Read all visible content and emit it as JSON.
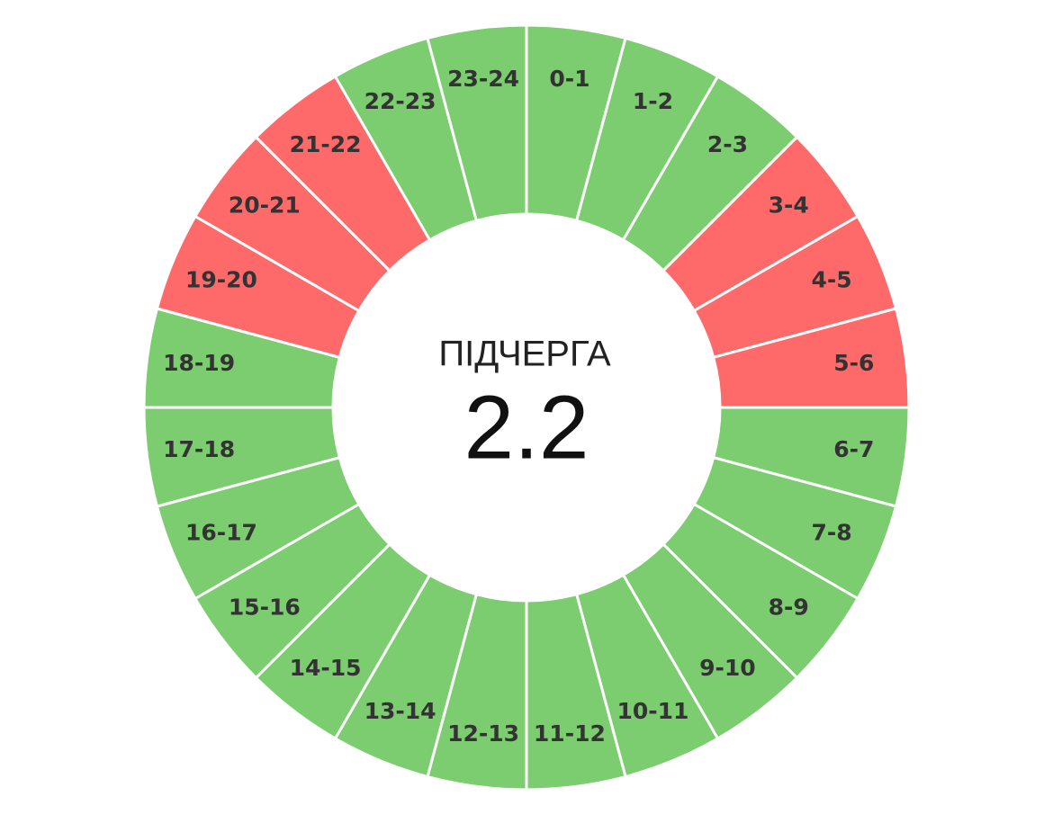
{
  "header": {
    "label": "ПІДЧЕРГА",
    "queue": "2.2"
  },
  "segments": [
    {
      "label": "0-1",
      "color": "#7ccd6f"
    },
    {
      "label": "1-2",
      "color": "#7ccd6f"
    },
    {
      "label": "2-3",
      "color": "#7ccd6f"
    },
    {
      "label": "3-4",
      "color": "#fe6a6a"
    },
    {
      "label": "4-5",
      "color": "#fe6a6a"
    },
    {
      "label": "5-6",
      "color": "#fe6a6a"
    },
    {
      "label": "6-7",
      "color": "#7ccd6f"
    },
    {
      "label": "7-8",
      "color": "#7ccd6f"
    },
    {
      "label": "8-9",
      "color": "#7ccd6f"
    },
    {
      "label": "9-10",
      "color": "#7ccd6f"
    },
    {
      "label": "10-11",
      "color": "#7ccd6f"
    },
    {
      "label": "11-12",
      "color": "#7ccd6f"
    },
    {
      "label": "12-13",
      "color": "#7ccd6f"
    },
    {
      "label": "13-14",
      "color": "#7ccd6f"
    },
    {
      "label": "14-15",
      "color": "#7ccd6f"
    },
    {
      "label": "15-16",
      "color": "#7ccd6f"
    },
    {
      "label": "16-17",
      "color": "#7ccd6f"
    },
    {
      "label": "17-18",
      "color": "#7ccd6f"
    },
    {
      "label": "18-19",
      "color": "#7ccd6f"
    },
    {
      "label": "19-20",
      "color": "#fe6a6a"
    },
    {
      "label": "20-21",
      "color": "#fe6a6a"
    },
    {
      "label": "21-22",
      "color": "#fe6a6a"
    },
    {
      "label": "22-23",
      "color": "#7ccd6f"
    },
    {
      "label": "23-24",
      "color": "#7ccd6f"
    }
  ]
}
